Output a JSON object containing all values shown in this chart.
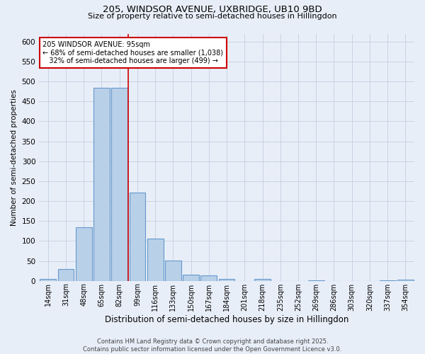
{
  "title1": "205, WINDSOR AVENUE, UXBRIDGE, UB10 9BD",
  "title2": "Size of property relative to semi-detached houses in Hillingdon",
  "xlabel": "Distribution of semi-detached houses by size in Hillingdon",
  "ylabel": "Number of semi-detached properties",
  "categories": [
    "14sqm",
    "31sqm",
    "48sqm",
    "65sqm",
    "82sqm",
    "99sqm",
    "116sqm",
    "133sqm",
    "150sqm",
    "167sqm",
    "184sqm",
    "201sqm",
    "218sqm",
    "235sqm",
    "252sqm",
    "269sqm",
    "286sqm",
    "303sqm",
    "320sqm",
    "337sqm",
    "354sqm"
  ],
  "values": [
    4,
    29,
    135,
    484,
    484,
    222,
    106,
    51,
    15,
    14,
    5,
    0,
    5,
    0,
    0,
    1,
    0,
    0,
    0,
    1,
    3
  ],
  "bar_color": "#b8d0e8",
  "bar_edge_color": "#6699cc",
  "grid_color": "#c8d4e4",
  "background_color": "#e8eef8",
  "vline_color": "#cc0000",
  "annotation_text": "205 WINDSOR AVENUE: 95sqm\n← 68% of semi-detached houses are smaller (1,038)\n   32% of semi-detached houses are larger (499) →",
  "annotation_box_color": "#ffffff",
  "annotation_box_edge": "#cc0000",
  "footer1": "Contains HM Land Registry data © Crown copyright and database right 2025.",
  "footer2": "Contains public sector information licensed under the Open Government Licence v3.0.",
  "ylim": [
    0,
    620
  ],
  "yticks": [
    0,
    50,
    100,
    150,
    200,
    250,
    300,
    350,
    400,
    450,
    500,
    550,
    600
  ]
}
